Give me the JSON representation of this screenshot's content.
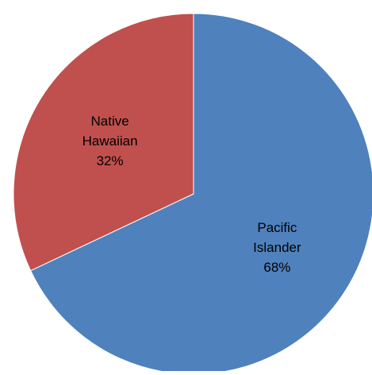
{
  "chart_data": {
    "type": "pie",
    "title": "",
    "slices": [
      {
        "label_lines": [
          "Pacific",
          "Islander"
        ],
        "percent_label": "68%",
        "value": 68,
        "color": "#4F81BD"
      },
      {
        "label_lines": [
          "Native",
          "Hawaiian"
        ],
        "percent_label": "32%",
        "value": 32,
        "color": "#C0504D"
      }
    ],
    "start_angle_deg": 0,
    "direction": "clockwise",
    "legend": "none",
    "data_labels": "inside"
  }
}
